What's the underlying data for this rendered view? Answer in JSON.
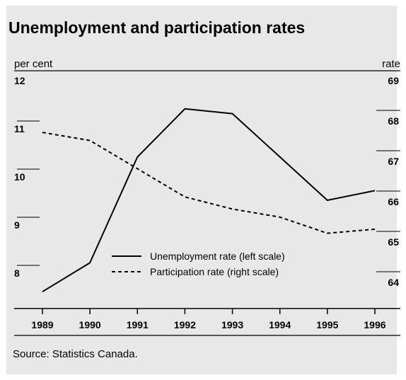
{
  "title": "Unemployment and participation rates",
  "source": "Source: Statistics Canada.",
  "colors": {
    "background": "#e8e8e8",
    "line": "#000000"
  },
  "chart_data": {
    "type": "line",
    "title": "Unemployment and participation rates",
    "x": [
      "1989",
      "1990",
      "1991",
      "1992",
      "1993",
      "1994",
      "1995",
      "1996"
    ],
    "left_axis": {
      "label": "per cent",
      "ticks": [
        "12",
        "11",
        "10",
        "9",
        "8"
      ],
      "ylim": [
        7.6,
        12
      ]
    },
    "right_axis": {
      "label": "rate",
      "ticks": [
        "69",
        "68",
        "67",
        "66",
        "65",
        "64"
      ],
      "ylim": [
        63.7,
        69
      ]
    },
    "series": [
      {
        "name": "Unemployment rate (left scale)",
        "axis": "left",
        "style": "solid",
        "values": [
          7.6,
          8.2,
          10.4,
          11.4,
          11.3,
          10.4,
          9.5,
          9.7
        ]
      },
      {
        "name": "Participation rate (right scale)",
        "axis": "right",
        "style": "dashed",
        "values": [
          67.7,
          67.5,
          66.8,
          66.1,
          65.8,
          65.6,
          65.2,
          65.3
        ]
      }
    ],
    "grid": false,
    "legend_placement": "center"
  }
}
